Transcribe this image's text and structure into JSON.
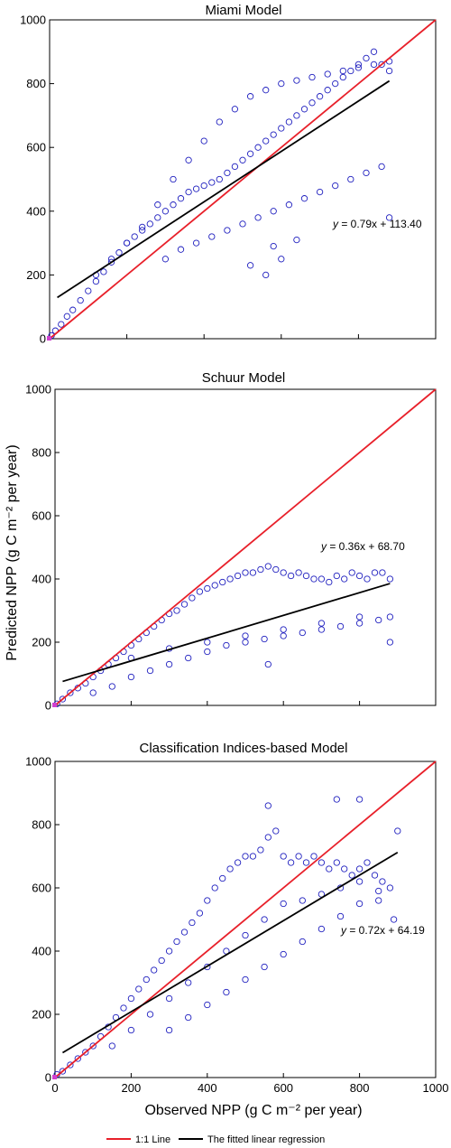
{
  "figure": {
    "ylabel": "Predicted NPP (g C m⁻² per year)",
    "xlabel": "Observed NPP (g C m⁻² per year)",
    "legend": {
      "entries": [
        {
          "label": "1:1 Line",
          "color": "#e8202a"
        },
        {
          "label": "The fitted linear regression",
          "color": "#000000"
        }
      ]
    }
  },
  "chart_data": [
    {
      "type": "scatter",
      "title": "Miami Model",
      "xlim": [
        0,
        1000
      ],
      "ylim": [
        0,
        1000
      ],
      "xticks": [
        0,
        200,
        400,
        600,
        800,
        1000
      ],
      "yticks": [
        0,
        200,
        400,
        600,
        800,
        1000
      ],
      "show_x_tick_labels": false,
      "grid": false,
      "marker_color": "#1f1fbf",
      "equation": {
        "prefix": "y",
        "text": " = 0.79x + 113.40"
      },
      "regression": {
        "slope": 0.79,
        "intercept": 113.4,
        "x_range": [
          20,
          880
        ]
      },
      "one_to_one": {
        "x_range": [
          0,
          1000
        ]
      },
      "series": [
        {
          "name": "observed",
          "x": [
            5,
            15,
            30,
            45,
            60,
            80,
            100,
            120,
            140,
            160,
            180,
            200,
            220,
            240,
            260,
            280,
            300,
            320,
            340,
            360,
            380,
            400,
            420,
            440,
            460,
            480,
            500,
            520,
            540,
            560,
            580,
            600,
            620,
            640,
            660,
            680,
            700,
            720,
            740,
            760,
            780,
            800,
            820,
            840,
            860,
            880,
            120,
            160,
            200,
            240,
            280,
            320,
            360,
            400,
            440,
            480,
            520,
            560,
            600,
            640,
            680,
            720,
            760,
            800,
            840,
            880,
            300,
            340,
            380,
            420,
            460,
            500,
            540,
            580,
            620,
            660,
            700,
            740,
            780,
            820,
            860,
            560,
            600,
            640,
            520,
            580,
            880
          ],
          "y": [
            10,
            25,
            45,
            70,
            90,
            120,
            150,
            180,
            210,
            240,
            270,
            300,
            320,
            340,
            360,
            380,
            400,
            420,
            440,
            460,
            470,
            480,
            490,
            500,
            520,
            540,
            560,
            580,
            600,
            620,
            640,
            660,
            680,
            700,
            720,
            740,
            760,
            780,
            800,
            820,
            840,
            860,
            880,
            900,
            860,
            840,
            200,
            250,
            300,
            350,
            420,
            500,
            560,
            620,
            680,
            720,
            760,
            780,
            800,
            810,
            820,
            830,
            840,
            850,
            860,
            870,
            250,
            280,
            300,
            320,
            340,
            360,
            380,
            400,
            420,
            440,
            460,
            480,
            500,
            520,
            540,
            200,
            250,
            310,
            230,
            290,
            380
          ]
        }
      ]
    },
    {
      "type": "scatter",
      "title": "Schuur Model",
      "xlim": [
        0,
        1000
      ],
      "ylim": [
        0,
        1000
      ],
      "xticks": [
        0,
        200,
        400,
        600,
        800,
        1000
      ],
      "yticks": [
        0,
        200,
        400,
        600,
        800,
        1000
      ],
      "show_x_tick_labels": false,
      "grid": false,
      "marker_color": "#1f1fbf",
      "equation": {
        "prefix": "y",
        "text": " = 0.36x + 68.70"
      },
      "regression": {
        "slope": 0.36,
        "intercept": 68.7,
        "x_range": [
          20,
          880
        ]
      },
      "one_to_one": {
        "x_range": [
          0,
          1000
        ]
      },
      "series": [
        {
          "name": "observed",
          "x": [
            5,
            20,
            40,
            60,
            80,
            100,
            120,
            140,
            160,
            180,
            200,
            220,
            240,
            260,
            280,
            300,
            320,
            340,
            360,
            380,
            400,
            420,
            440,
            460,
            480,
            500,
            520,
            540,
            560,
            580,
            600,
            620,
            640,
            660,
            680,
            700,
            720,
            740,
            760,
            780,
            800,
            820,
            840,
            860,
            880,
            100,
            150,
            200,
            250,
            300,
            350,
            400,
            450,
            500,
            550,
            600,
            650,
            700,
            750,
            800,
            850,
            880,
            200,
            300,
            400,
            500,
            600,
            700,
            800,
            560,
            880
          ],
          "y": [
            5,
            20,
            40,
            55,
            70,
            90,
            110,
            130,
            150,
            170,
            190,
            210,
            230,
            250,
            270,
            290,
            300,
            320,
            340,
            360,
            370,
            380,
            390,
            400,
            410,
            420,
            420,
            430,
            440,
            430,
            420,
            410,
            420,
            410,
            400,
            400,
            390,
            410,
            400,
            420,
            410,
            400,
            420,
            420,
            400,
            40,
            60,
            90,
            110,
            130,
            150,
            170,
            190,
            200,
            210,
            220,
            230,
            240,
            250,
            260,
            270,
            280,
            150,
            180,
            200,
            220,
            240,
            260,
            280,
            130,
            200
          ]
        }
      ]
    },
    {
      "type": "scatter",
      "title": "Classification Indices-based Model",
      "xlim": [
        0,
        1000
      ],
      "ylim": [
        0,
        1000
      ],
      "xticks": [
        0,
        200,
        400,
        600,
        800,
        1000
      ],
      "yticks": [
        0,
        200,
        400,
        600,
        800,
        1000
      ],
      "show_x_tick_labels": true,
      "grid": false,
      "marker_color": "#1f1fbf",
      "equation": {
        "prefix": "y",
        "text": " = 0.72x + 64.19"
      },
      "regression": {
        "slope": 0.72,
        "intercept": 64.19,
        "x_range": [
          20,
          900
        ]
      },
      "one_to_one": {
        "x_range": [
          0,
          1000
        ]
      },
      "series": [
        {
          "name": "observed",
          "x": [
            5,
            20,
            40,
            60,
            80,
            100,
            120,
            140,
            160,
            180,
            200,
            220,
            240,
            260,
            280,
            300,
            320,
            340,
            360,
            380,
            400,
            420,
            440,
            460,
            480,
            500,
            520,
            540,
            560,
            580,
            600,
            620,
            640,
            660,
            680,
            700,
            720,
            740,
            760,
            780,
            800,
            820,
            840,
            860,
            880,
            900,
            150,
            200,
            250,
            300,
            350,
            400,
            450,
            500,
            550,
            600,
            650,
            700,
            750,
            800,
            850,
            890,
            300,
            350,
            400,
            450,
            500,
            550,
            600,
            650,
            700,
            750,
            800,
            850,
            560,
            740,
            800
          ],
          "y": [
            10,
            20,
            40,
            60,
            80,
            100,
            130,
            160,
            190,
            220,
            250,
            280,
            310,
            340,
            370,
            400,
            430,
            460,
            490,
            520,
            560,
            600,
            630,
            660,
            680,
            700,
            700,
            720,
            760,
            780,
            700,
            680,
            700,
            680,
            700,
            680,
            660,
            680,
            660,
            640,
            660,
            680,
            640,
            620,
            600,
            780,
            100,
            150,
            200,
            250,
            300,
            350,
            400,
            450,
            500,
            550,
            560,
            580,
            600,
            620,
            560,
            500,
            150,
            190,
            230,
            270,
            310,
            350,
            390,
            430,
            470,
            510,
            550,
            590,
            860,
            880,
            880
          ]
        }
      ]
    }
  ]
}
